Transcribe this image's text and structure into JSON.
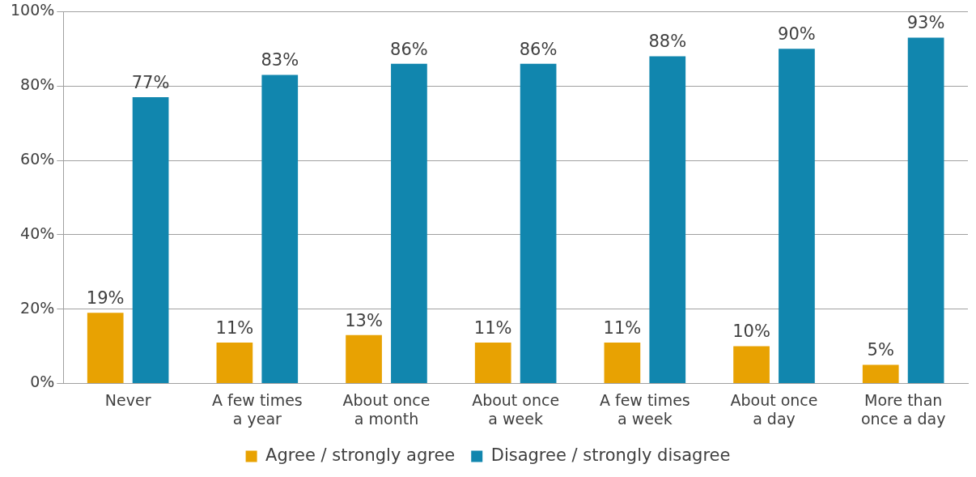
{
  "chart_data": {
    "type": "bar",
    "categories": [
      "Never",
      "A few times a year",
      "About once a month",
      "About once a week",
      "A few times a week",
      "About once a day",
      "More than once a day"
    ],
    "series": [
      {
        "name": "Agree / strongly agree",
        "color": "#e8a202",
        "values": [
          19,
          11,
          13,
          11,
          11,
          10,
          5
        ],
        "value_labels": [
          "19%",
          "11%",
          "13%",
          "11%",
          "11%",
          "10%",
          "5%"
        ]
      },
      {
        "name": "Disagree / strongly disagree",
        "color": "#1186ae",
        "values": [
          77,
          83,
          86,
          86,
          88,
          90,
          93
        ],
        "value_labels": [
          "77%",
          "83%",
          "86%",
          "86%",
          "88%",
          "90%",
          "93%"
        ]
      }
    ],
    "ylim": [
      0,
      100
    ],
    "yticks": [
      {
        "value": 0,
        "label": "0%"
      },
      {
        "value": 20,
        "label": "20%"
      },
      {
        "value": 40,
        "label": "40%"
      },
      {
        "value": 60,
        "label": "60%"
      },
      {
        "value": 80,
        "label": "80%"
      },
      {
        "value": 100,
        "label": "100%"
      }
    ],
    "grid": "y",
    "legend": "bottom"
  }
}
